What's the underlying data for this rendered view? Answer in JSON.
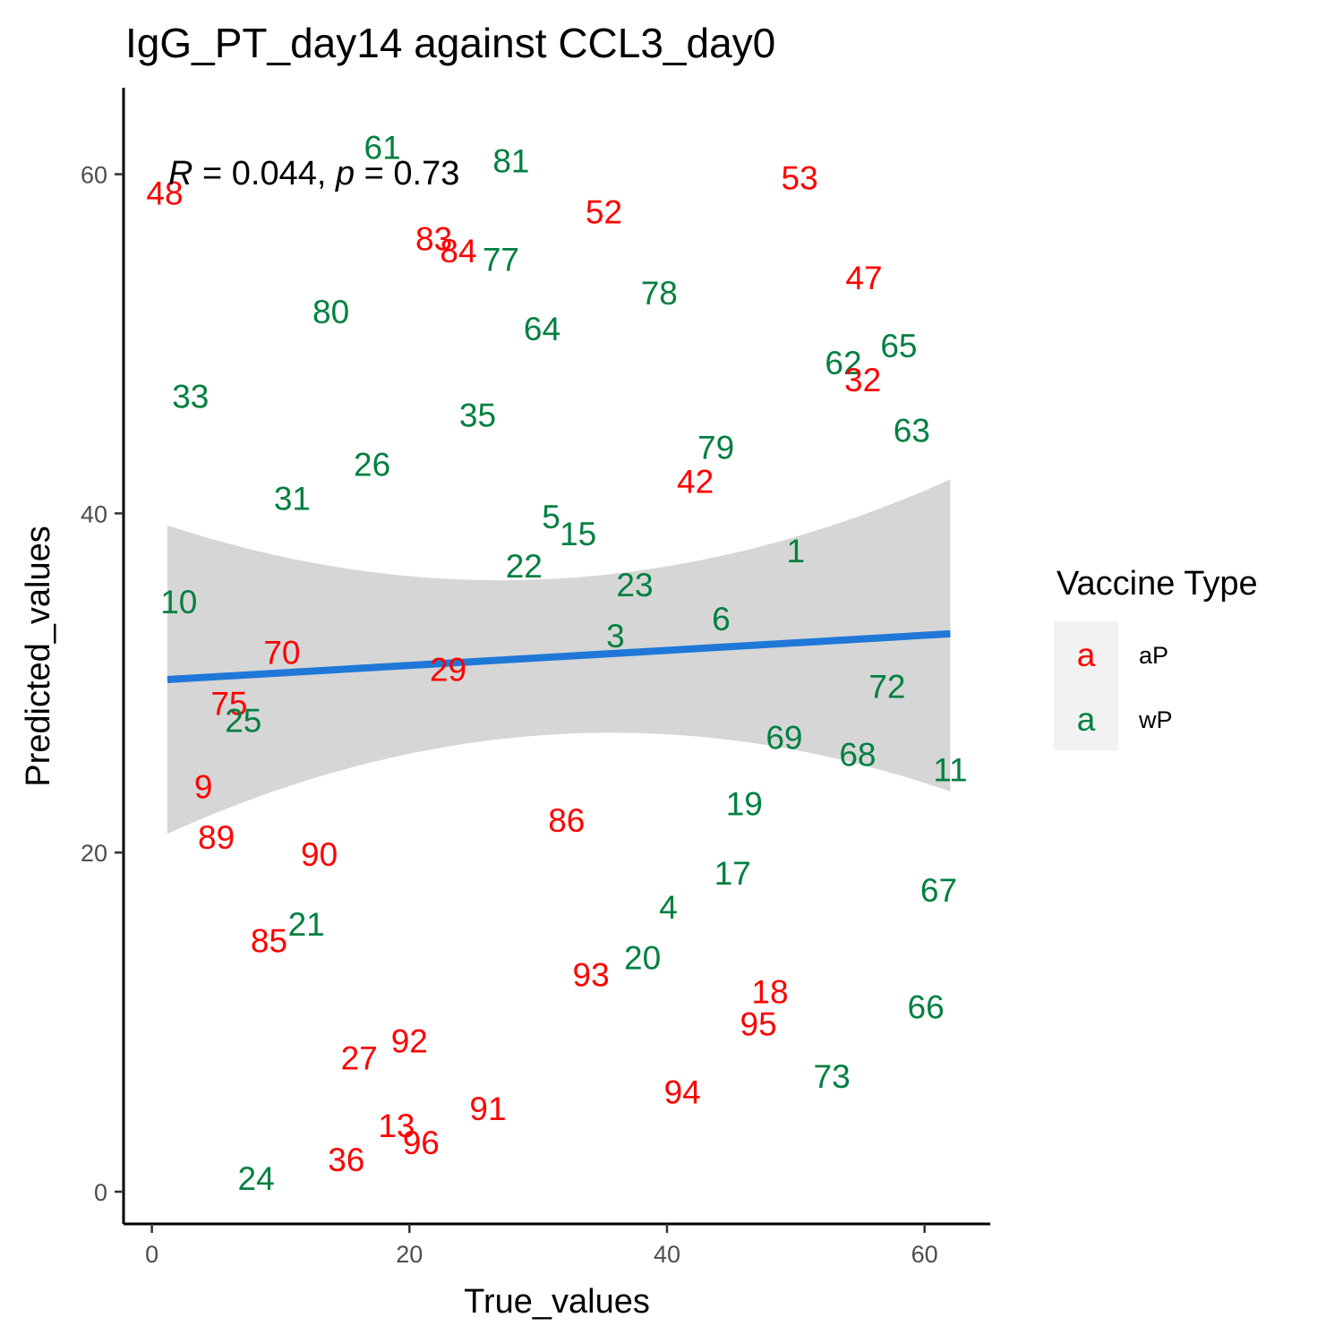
{
  "chart_data": {
    "type": "scatter",
    "title": "IgG_PT_day14 against CCL3_day0",
    "xlabel": "True_values",
    "ylabel": "Predicted_values",
    "xlim": [
      -2.2,
      65.1
    ],
    "ylim": [
      -1.9,
      65.1
    ],
    "x_ticks": [
      0,
      20,
      40,
      60
    ],
    "y_ticks": [
      0,
      20,
      40,
      60
    ],
    "grid": false,
    "stat_annotation": {
      "r_symbol": "R",
      "r_value": " = 0.044, ",
      "p_symbol": "p",
      "p_value": " = 0.73"
    },
    "legend": {
      "title": "Vaccine Type",
      "position": "right",
      "key_glyph": "a",
      "entries": [
        {
          "name": "aP",
          "color": "#ff0000"
        },
        {
          "name": "wP",
          "color": "#008040"
        }
      ]
    },
    "fit_line": {
      "method": "lm",
      "color": "#1f78d8",
      "ribbon_color": "#d6d6d6",
      "x": [
        1.2,
        30,
        62
      ],
      "y": [
        30.2,
        31.5,
        32.9
      ],
      "ci_lower": [
        21.1,
        26.9,
        23.6
      ],
      "ci_upper": [
        39.3,
        36.1,
        42.0
      ]
    },
    "points": [
      {
        "label": "48",
        "group": "aP",
        "x": 1.0,
        "y": 58.9
      },
      {
        "label": "61",
        "group": "wP",
        "x": 17.9,
        "y": 61.6
      },
      {
        "label": "81",
        "group": "wP",
        "x": 27.9,
        "y": 60.8
      },
      {
        "label": "53",
        "group": "aP",
        "x": 50.3,
        "y": 59.8
      },
      {
        "label": "52",
        "group": "aP",
        "x": 35.1,
        "y": 57.8
      },
      {
        "label": "83",
        "group": "aP",
        "x": 21.9,
        "y": 56.2
      },
      {
        "label": "84",
        "group": "aP",
        "x": 23.8,
        "y": 55.5
      },
      {
        "label": "77",
        "group": "wP",
        "x": 27.1,
        "y": 55.0
      },
      {
        "label": "47",
        "group": "aP",
        "x": 55.3,
        "y": 53.9
      },
      {
        "label": "78",
        "group": "wP",
        "x": 39.4,
        "y": 53.0
      },
      {
        "label": "80",
        "group": "wP",
        "x": 13.9,
        "y": 51.9
      },
      {
        "label": "64",
        "group": "wP",
        "x": 30.3,
        "y": 50.9
      },
      {
        "label": "65",
        "group": "wP",
        "x": 58.0,
        "y": 49.9
      },
      {
        "label": "62",
        "group": "wP",
        "x": 53.7,
        "y": 48.9
      },
      {
        "label": "32",
        "group": "aP",
        "x": 55.2,
        "y": 47.9
      },
      {
        "label": "33",
        "group": "wP",
        "x": 3.0,
        "y": 46.9
      },
      {
        "label": "35",
        "group": "wP",
        "x": 25.3,
        "y": 45.8
      },
      {
        "label": "63",
        "group": "wP",
        "x": 59.0,
        "y": 44.9
      },
      {
        "label": "79",
        "group": "wP",
        "x": 43.8,
        "y": 43.9
      },
      {
        "label": "26",
        "group": "wP",
        "x": 17.1,
        "y": 42.9
      },
      {
        "label": "42",
        "group": "aP",
        "x": 42.2,
        "y": 41.9
      },
      {
        "label": "31",
        "group": "wP",
        "x": 10.9,
        "y": 40.9
      },
      {
        "label": "5",
        "group": "wP",
        "x": 31.0,
        "y": 39.8
      },
      {
        "label": "15",
        "group": "wP",
        "x": 33.1,
        "y": 38.8
      },
      {
        "label": "1",
        "group": "wP",
        "x": 50.0,
        "y": 37.8
      },
      {
        "label": "22",
        "group": "wP",
        "x": 28.9,
        "y": 36.9
      },
      {
        "label": "23",
        "group": "wP",
        "x": 37.5,
        "y": 35.8
      },
      {
        "label": "10",
        "group": "wP",
        "x": 2.1,
        "y": 34.8
      },
      {
        "label": "6",
        "group": "wP",
        "x": 44.2,
        "y": 33.8
      },
      {
        "label": "3",
        "group": "wP",
        "x": 36.0,
        "y": 32.8
      },
      {
        "label": "70",
        "group": "aP",
        "x": 10.1,
        "y": 31.8
      },
      {
        "label": "29",
        "group": "aP",
        "x": 23.0,
        "y": 30.8
      },
      {
        "label": "72",
        "group": "wP",
        "x": 57.1,
        "y": 29.8
      },
      {
        "label": "75",
        "group": "aP",
        "x": 6.0,
        "y": 28.8
      },
      {
        "label": "25",
        "group": "wP",
        "x": 7.1,
        "y": 27.8
      },
      {
        "label": "69",
        "group": "wP",
        "x": 49.1,
        "y": 26.8
      },
      {
        "label": "68",
        "group": "wP",
        "x": 54.8,
        "y": 25.8
      },
      {
        "label": "11",
        "group": "wP",
        "x": 62.0,
        "y": 24.9
      },
      {
        "label": "9",
        "group": "aP",
        "x": 4.0,
        "y": 23.9
      },
      {
        "label": "19",
        "group": "wP",
        "x": 46.0,
        "y": 22.9
      },
      {
        "label": "86",
        "group": "aP",
        "x": 32.2,
        "y": 21.9
      },
      {
        "label": "89",
        "group": "aP",
        "x": 5.0,
        "y": 20.9
      },
      {
        "label": "90",
        "group": "aP",
        "x": 13.0,
        "y": 19.9
      },
      {
        "label": "17",
        "group": "wP",
        "x": 45.1,
        "y": 18.8
      },
      {
        "label": "67",
        "group": "wP",
        "x": 61.1,
        "y": 17.8
      },
      {
        "label": "4",
        "group": "wP",
        "x": 40.1,
        "y": 16.8
      },
      {
        "label": "21",
        "group": "wP",
        "x": 12.0,
        "y": 15.8
      },
      {
        "label": "85",
        "group": "aP",
        "x": 9.1,
        "y": 14.8
      },
      {
        "label": "20",
        "group": "wP",
        "x": 38.1,
        "y": 13.8
      },
      {
        "label": "93",
        "group": "aP",
        "x": 34.1,
        "y": 12.8
      },
      {
        "label": "18",
        "group": "aP",
        "x": 48.0,
        "y": 11.8
      },
      {
        "label": "66",
        "group": "wP",
        "x": 60.1,
        "y": 10.9
      },
      {
        "label": "95",
        "group": "aP",
        "x": 47.1,
        "y": 9.9
      },
      {
        "label": "92",
        "group": "aP",
        "x": 20.0,
        "y": 8.9
      },
      {
        "label": "27",
        "group": "aP",
        "x": 16.1,
        "y": 7.9
      },
      {
        "label": "73",
        "group": "wP",
        "x": 52.8,
        "y": 6.8
      },
      {
        "label": "94",
        "group": "aP",
        "x": 41.2,
        "y": 5.9
      },
      {
        "label": "91",
        "group": "aP",
        "x": 26.1,
        "y": 4.9
      },
      {
        "label": "13",
        "group": "aP",
        "x": 19.0,
        "y": 3.9
      },
      {
        "label": "96",
        "group": "aP",
        "x": 20.9,
        "y": 2.9
      },
      {
        "label": "36",
        "group": "aP",
        "x": 15.1,
        "y": 1.9
      },
      {
        "label": "24",
        "group": "wP",
        "x": 8.1,
        "y": 0.8
      }
    ]
  }
}
